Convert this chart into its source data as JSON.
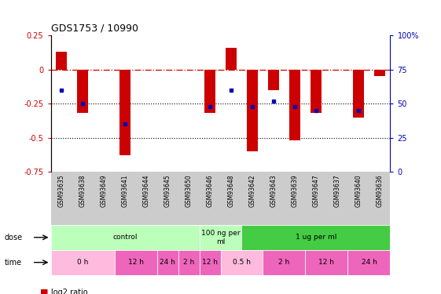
{
  "title": "GDS1753 / 10990",
  "samples": [
    "GSM93635",
    "GSM93638",
    "GSM93649",
    "GSM93641",
    "GSM93644",
    "GSM93645",
    "GSM93650",
    "GSM93646",
    "GSM93648",
    "GSM93642",
    "GSM93643",
    "GSM93639",
    "GSM93647",
    "GSM93637",
    "GSM93640",
    "GSM93636"
  ],
  "log2_ratio": [
    0.13,
    -0.32,
    0.0,
    -0.63,
    0.0,
    0.0,
    0.0,
    -0.32,
    0.16,
    -0.6,
    -0.15,
    -0.52,
    -0.32,
    0.0,
    -0.35,
    -0.05
  ],
  "percentile_rank": [
    60,
    50,
    0,
    35,
    0,
    0,
    0,
    48,
    60,
    48,
    52,
    48,
    45,
    0,
    45,
    0
  ],
  "dose_groups": [
    {
      "label": "control",
      "start": 0,
      "end": 7
    },
    {
      "label": "100 ng per\nml",
      "start": 7,
      "end": 9
    },
    {
      "label": "1 ug per ml",
      "start": 9,
      "end": 16
    }
  ],
  "time_groups": [
    {
      "label": "0 h",
      "start": 0,
      "end": 3,
      "light": true
    },
    {
      "label": "12 h",
      "start": 3,
      "end": 5,
      "light": false
    },
    {
      "label": "24 h",
      "start": 5,
      "end": 6,
      "light": false
    },
    {
      "label": "2 h",
      "start": 6,
      "end": 7,
      "light": false
    },
    {
      "label": "12 h",
      "start": 7,
      "end": 8,
      "light": false
    },
    {
      "label": "0.5 h",
      "start": 8,
      "end": 10,
      "light": true
    },
    {
      "label": "2 h",
      "start": 10,
      "end": 12,
      "light": false
    },
    {
      "label": "12 h",
      "start": 12,
      "end": 14,
      "light": false
    },
    {
      "label": "24 h",
      "start": 14,
      "end": 16,
      "light": false
    }
  ],
  "bar_color": "#CC0000",
  "dot_color": "#0000BB",
  "ylim_left": [
    -0.75,
    0.25
  ],
  "ylim_right": [
    0,
    100
  ],
  "yticks_left": [
    -0.75,
    -0.5,
    -0.25,
    0,
    0.25
  ],
  "yticks_right": [
    0,
    25,
    50,
    75,
    100
  ],
  "dose_light_color": "#BBFFBB",
  "dose_dark_color": "#44CC44",
  "time_light_color": "#FFBBDD",
  "time_dark_color": "#EE66BB",
  "label_bg_color": "#CCCCCC",
  "bg_color": "#FFFFFF"
}
